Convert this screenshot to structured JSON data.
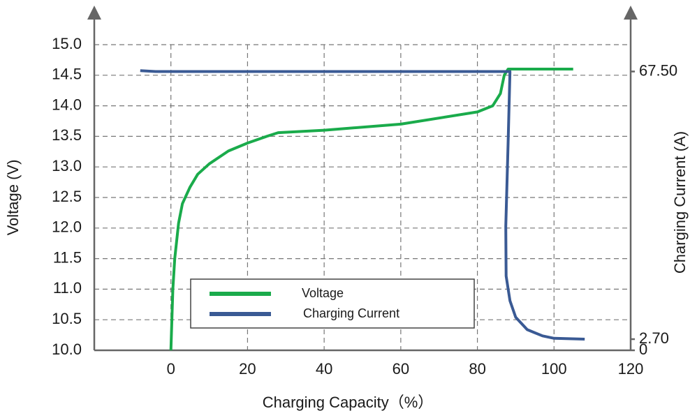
{
  "chart_data": {
    "type": "line",
    "xlabel": "Charging Capacity（%）",
    "ylabel": "Voltage (V)",
    "y2label": "Charging Current (A)",
    "xlim": [
      -20,
      120
    ],
    "xticks": [
      0,
      20,
      40,
      60,
      80,
      100,
      120
    ],
    "ylim": [
      10,
      15
    ],
    "yticks": [
      {
        "value": 10,
        "label": "10.0"
      },
      {
        "value": 10.5,
        "label": "10.5"
      },
      {
        "value": 11,
        "label": "11.0"
      },
      {
        "value": 11.5,
        "label": "11.5"
      },
      {
        "value": 12,
        "label": "12.0"
      },
      {
        "value": 12.5,
        "label": "12.5"
      },
      {
        "value": 13,
        "label": "13.0"
      },
      {
        "value": 13.5,
        "label": "13.5"
      },
      {
        "value": 14,
        "label": "14.0"
      },
      {
        "value": 14.5,
        "label": "14.5"
      },
      {
        "value": 15,
        "label": "15.0"
      }
    ],
    "y2lim": [
      0,
      74
    ],
    "y2ticks": [
      0,
      {
        "value": 2.7,
        "label": "2.70"
      },
      {
        "value": 67.5,
        "label": "67.50"
      }
    ],
    "grid": true,
    "series": [
      {
        "name": "Voltage",
        "color": "#1aab4b",
        "x": [
          0,
          0.5,
          1,
          2,
          3,
          5,
          7,
          10,
          15,
          20,
          25,
          28,
          40,
          60,
          80,
          84,
          86,
          87,
          88,
          105
        ],
        "values": [
          10.0,
          11.0,
          11.5,
          12.08,
          12.4,
          12.67,
          12.88,
          13.05,
          13.26,
          13.39,
          13.5,
          13.56,
          13.6,
          13.7,
          13.9,
          14.0,
          14.2,
          14.5,
          14.6,
          14.6
        ]
      },
      {
        "name": "Charging Current",
        "color": "#3a5a94",
        "axis": "y2",
        "x": [
          -8,
          -4,
          88.5,
          88,
          87.4,
          87.5,
          88.5,
          90,
          93,
          97,
          100,
          108
        ],
        "values": [
          67.7,
          67.5,
          67.5,
          50,
          30,
          18,
          12,
          8,
          5,
          3.5,
          2.9,
          2.7
        ]
      }
    ],
    "legend": "bottom-center"
  }
}
